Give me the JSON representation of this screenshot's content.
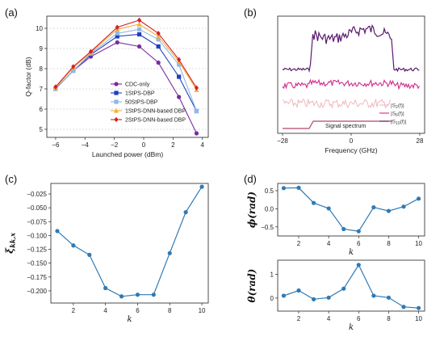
{
  "panel_labels": {
    "a": "(a)",
    "b": "(b)",
    "c": "(c)",
    "d": "(d)"
  },
  "chart_data": [
    {
      "id": "a",
      "type": "line",
      "xlabel": "Launched power (dBm)",
      "ylabel": "Q-factor (dB)",
      "xlim": [
        -6.6,
        4.4
      ],
      "ylim": [
        4.6,
        10.6
      ],
      "xticks": [
        -6,
        -4,
        -2,
        0,
        2,
        4
      ],
      "yticks": [
        5,
        6,
        7,
        8,
        9,
        10
      ],
      "grid": "horizontal-dashed",
      "legend": "center-right",
      "x": [
        -6,
        -4.8,
        -3.6,
        -1.8,
        -0.3,
        1,
        2.4,
        3.6
      ],
      "series": [
        {
          "name": "CDC-only",
          "color": "#7a2b9e",
          "marker": "circle",
          "values": [
            7.0,
            7.9,
            8.6,
            9.3,
            9.1,
            8.3,
            6.6,
            4.8
          ]
        },
        {
          "name": "1StPS-DBP",
          "color": "#1f3fbf",
          "marker": "square",
          "values": [
            7.0,
            7.9,
            8.7,
            9.6,
            9.7,
            9.1,
            7.6,
            5.9
          ]
        },
        {
          "name": "50StPS-DBP",
          "color": "#8eb8e8",
          "marker": "square",
          "values": [
            7.0,
            7.9,
            8.75,
            9.75,
            9.95,
            9.45,
            8.2,
            5.9
          ]
        },
        {
          "name": "1StPS-DNN-based DBP",
          "color": "#f2b138",
          "marker": "triangle",
          "values": [
            7.05,
            8.05,
            8.8,
            9.95,
            10.2,
            9.6,
            8.35,
            6.95
          ]
        },
        {
          "name": "2StPS-DNN-based DBP",
          "color": "#d4202a",
          "marker": "diamond",
          "values": [
            7.1,
            8.1,
            8.85,
            10.05,
            10.4,
            9.75,
            8.45,
            7.05
          ]
        }
      ]
    },
    {
      "id": "b",
      "type": "line",
      "xlabel": "Frequency (GHz)",
      "xticks": [
        "-28",
        "0",
        "28"
      ],
      "legend": "bottom-right",
      "legend_entries": [
        {
          "label": "|S",
          "sub": "2",
          "tail": "(f)|",
          "color": "#f2b7bf"
        },
        {
          "label": "|S",
          "sub": "6",
          "tail": "(f)|",
          "color": "#cf2a8a"
        },
        {
          "label": "|S",
          "sub": "10",
          "tail": "(f)|",
          "color": "#5a1a6e"
        }
      ],
      "annotation": "Signal spectrum",
      "annotation_color": "#b3466e"
    },
    {
      "id": "c",
      "type": "line",
      "xlabel": "k",
      "ylabel": "ξ",
      "ylabel_sub": "kk,x",
      "color": "#2f7ab5",
      "xlim": [
        0.6,
        10.4
      ],
      "ylim": [
        -0.222,
        -0.006
      ],
      "xticks": [
        2,
        4,
        6,
        8,
        10
      ],
      "yticks": [
        -0.025,
        -0.05,
        -0.075,
        -0.1,
        -0.125,
        -0.15,
        -0.175,
        -0.2
      ],
      "ytick_labels": [
        "−0.025",
        "−0.050",
        "−0.075",
        "−0.100",
        "−0.125",
        "−0.150",
        "−0.175",
        "−0.200"
      ],
      "x": [
        1,
        2,
        3,
        4,
        5,
        6,
        7,
        8,
        9,
        10
      ],
      "values": [
        -0.092,
        -0.118,
        -0.135,
        -0.195,
        -0.21,
        -0.207,
        -0.207,
        -0.132,
        -0.058,
        -0.012
      ]
    },
    {
      "id": "d_top",
      "type": "line",
      "xlabel": "k",
      "ylabel": "ϕ(rad)",
      "color": "#2f7ab5",
      "xlim": [
        0.6,
        10.4
      ],
      "ylim": [
        -0.75,
        0.7
      ],
      "xticks": [
        2,
        4,
        6,
        8,
        10
      ],
      "yticks": [
        0.5,
        0,
        -0.5
      ],
      "ytick_labels": [
        "0.5",
        "0.0",
        "−0.5"
      ],
      "x": [
        1,
        2,
        3,
        4,
        5,
        6,
        7,
        8,
        9,
        10
      ],
      "values": [
        0.57,
        0.58,
        0.16,
        0.01,
        -0.56,
        -0.62,
        0.04,
        -0.06,
        0.06,
        0.28
      ]
    },
    {
      "id": "d_bottom",
      "type": "line",
      "xlabel": "k",
      "ylabel": "θ(rad)",
      "color": "#2f7ab5",
      "xlim": [
        0.6,
        10.4
      ],
      "ylim": [
        -0.55,
        1.6
      ],
      "xticks": [
        2,
        4,
        6,
        8,
        10
      ],
      "yticks": [
        1,
        0
      ],
      "ytick_labels": [
        "1",
        "0"
      ],
      "x": [
        1,
        2,
        3,
        4,
        5,
        6,
        7,
        8,
        9,
        10
      ],
      "values": [
        0.1,
        0.32,
        -0.05,
        0.02,
        0.4,
        1.4,
        0.1,
        0.02,
        -0.37,
        -0.42
      ]
    }
  ]
}
